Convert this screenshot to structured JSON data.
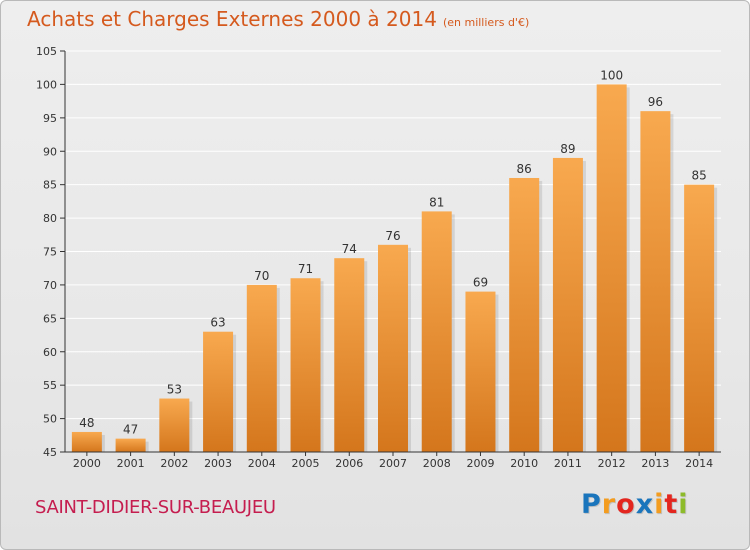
{
  "title": "Achats et Charges Externes 2000 à 2014",
  "subtitle": "(en milliers d'€)",
  "place": "SAINT-DIDIER-SUR-BEAUJEU",
  "logo": {
    "letters": [
      "P",
      "r",
      "o",
      "x",
      "i",
      "t",
      "i"
    ],
    "colors": [
      "#1a75bc",
      "#f39c1f",
      "#e3261f",
      "#1a75bc",
      "#f39c1f",
      "#e3261f",
      "#8dbb2a"
    ]
  },
  "colors": {
    "bar_light": "#f8a94f",
    "bar_dark": "#d4761c",
    "grid": "#ffffff",
    "axis": "#333333"
  },
  "chart_data": {
    "type": "bar",
    "title": "Achats et Charges Externes 2000 à 2014",
    "categories": [
      "2000",
      "2001",
      "2002",
      "2003",
      "2004",
      "2005",
      "2006",
      "2007",
      "2008",
      "2009",
      "2010",
      "2011",
      "2012",
      "2013",
      "2014"
    ],
    "values": [
      48,
      47,
      53,
      63,
      70,
      71,
      74,
      76,
      81,
      69,
      86,
      89,
      100,
      96,
      85
    ],
    "ylim": [
      45,
      105
    ],
    "yticks": [
      45,
      50,
      55,
      60,
      65,
      70,
      75,
      80,
      85,
      90,
      95,
      100,
      105
    ],
    "grid": true,
    "xlabel": "",
    "ylabel": ""
  }
}
